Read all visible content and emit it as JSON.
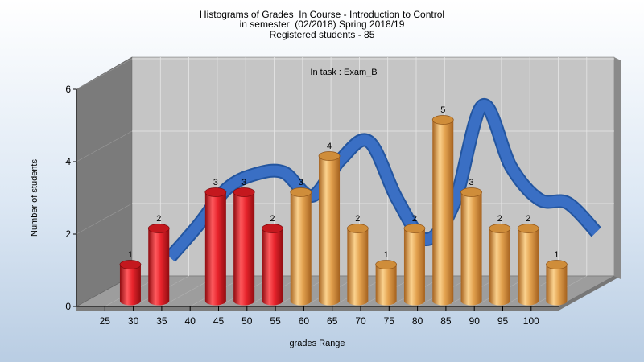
{
  "titles": [
    "Histograms of Grades  In Course - Introduction to Control",
    "in semester  (02/2018) Spring 2018/19",
    "Registered students - 85"
  ],
  "colors": {
    "fail_bar": "#e8242c",
    "pass_bar": "#e3a24f",
    "trend": "#3a6fc4",
    "plot_back": "#c5c5c5",
    "left_wall": "#7b7b7b",
    "floor": "#9d9d9d"
  },
  "chart_data": {
    "type": "bar",
    "title": "Histograms of Grades  In Course - Introduction to Control",
    "annotation": "In task : Exam_B",
    "xlabel": "grades Range",
    "ylabel": "Number of students",
    "ylim": [
      0,
      6
    ],
    "yticks": [
      0,
      2,
      4,
      6
    ],
    "xticks": [
      "25",
      "30",
      "35",
      "40",
      "45",
      "50",
      "55",
      "60",
      "65",
      "70",
      "75",
      "80",
      "85",
      "90",
      "95",
      "100"
    ],
    "bars": [
      {
        "x": 27.5,
        "value": 1,
        "group": "fail"
      },
      {
        "x": 32.5,
        "value": 2,
        "group": "fail"
      },
      {
        "x": 42.5,
        "value": 3,
        "group": "fail"
      },
      {
        "x": 47.5,
        "value": 3,
        "group": "fail"
      },
      {
        "x": 52.5,
        "value": 2,
        "group": "fail"
      },
      {
        "x": 57.5,
        "value": 3,
        "group": "pass"
      },
      {
        "x": 62.5,
        "value": 4,
        "group": "pass"
      },
      {
        "x": 67.5,
        "value": 2,
        "group": "pass"
      },
      {
        "x": 72.5,
        "value": 1,
        "group": "pass"
      },
      {
        "x": 77.5,
        "value": 2,
        "group": "pass"
      },
      {
        "x": 82.5,
        "value": 5,
        "group": "pass"
      },
      {
        "x": 87.5,
        "value": 3,
        "group": "pass"
      },
      {
        "x": 92.5,
        "value": 2,
        "group": "pass"
      },
      {
        "x": 97.5,
        "value": 2,
        "group": "pass"
      },
      {
        "x": 102.5,
        "value": 1,
        "group": "pass"
      }
    ],
    "trend_line": {
      "x": [
        32.5,
        37.5,
        42.5,
        47.5,
        52.5,
        57.5,
        62.5,
        67.5,
        72.5,
        77.5,
        82.5,
        87.5,
        92.5,
        97.5,
        102.5,
        107.5
      ],
      "y": [
        1.0,
        1.9,
        2.9,
        3.3,
        3.35,
        2.7,
        3.7,
        4.2,
        2.6,
        1.5,
        2.5,
        5.2,
        3.5,
        2.6,
        2.5,
        1.7
      ]
    },
    "grid": true
  }
}
